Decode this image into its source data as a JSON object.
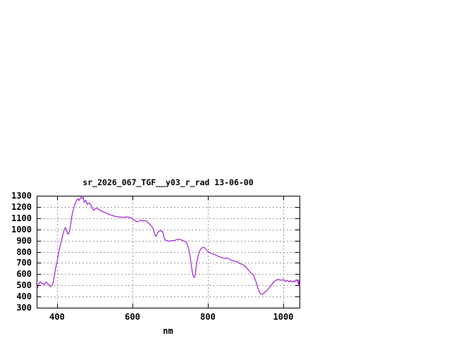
{
  "window": {
    "background": "#ffffff"
  },
  "chart_data": {
    "type": "line",
    "title": "sr_2026_067_TGF__y03_r_rad 13-06-00",
    "xlabel": "nm",
    "ylabel": "",
    "xlim": [
      346,
      1043
    ],
    "ylim": [
      300,
      1300
    ],
    "x_ticks": [
      400,
      600,
      800,
      1000
    ],
    "y_ticks": [
      300,
      400,
      500,
      600,
      700,
      800,
      900,
      1000,
      1100,
      1200,
      1300
    ],
    "grid": true,
    "legend_position": "none",
    "line_color": "#a020d0",
    "grid_color": "#9a9a9a",
    "axis_color": "#000000",
    "series": [
      {
        "name": "sr_2026_067_TGF__y03_r_rad 13-06-00",
        "x": [
          346,
          348,
          350,
          352,
          354,
          356,
          358,
          360,
          362,
          364,
          366,
          368,
          370,
          372,
          374,
          376,
          378,
          380,
          382,
          384,
          386,
          388,
          390,
          392,
          394,
          396,
          398,
          400,
          402,
          404,
          406,
          408,
          410,
          412,
          414,
          416,
          418,
          420,
          422,
          424,
          426,
          428,
          430,
          432,
          434,
          436,
          438,
          440,
          442,
          444,
          446,
          448,
          450,
          452,
          454,
          456,
          458,
          460,
          462,
          464,
          466,
          468,
          470,
          472,
          474,
          476,
          478,
          480,
          483,
          486,
          489,
          492,
          495,
          498,
          501,
          504,
          507,
          510,
          514,
          518,
          522,
          526,
          530,
          535,
          540,
          545,
          550,
          555,
          560,
          565,
          570,
          575,
          580,
          585,
          590,
          595,
          600,
          605,
          610,
          614,
          618,
          622,
          626,
          630,
          634,
          638,
          642,
          646,
          650,
          654,
          657,
          660,
          662,
          665,
          668,
          672,
          676,
          680,
          682,
          685,
          688,
          692,
          696,
          700,
          704,
          708,
          712,
          716,
          720,
          724,
          728,
          732,
          736,
          740,
          744,
          747,
          750,
          753,
          756,
          759,
          762,
          764,
          766,
          768,
          770,
          772,
          774,
          777,
          780,
          783,
          786,
          789,
          792,
          795,
          798,
          801,
          805,
          809,
          813,
          817,
          821,
          825,
          829,
          833,
          837,
          841,
          845,
          849,
          853,
          857,
          861,
          865,
          869,
          873,
          877,
          881,
          885,
          889,
          893,
          897,
          901,
          905,
          909,
          913,
          917,
          920,
          923,
          926,
          929,
          932,
          935,
          938,
          941,
          944,
          947,
          950,
          953,
          956,
          959,
          962,
          965,
          968,
          971,
          974,
          977,
          980,
          983,
          986,
          989,
          992,
          995,
          998,
          1001,
          1004,
          1007,
          1010,
          1013,
          1016,
          1019,
          1022,
          1025,
          1028,
          1031,
          1034,
          1036,
          1038,
          1040,
          1041,
          1043
        ],
        "y": [
          455,
          472,
          498,
          515,
          528,
          530,
          522,
          515,
          518,
          512,
          505,
          512,
          528,
          530,
          520,
          512,
          508,
          500,
          490,
          492,
          498,
          505,
          528,
          565,
          608,
          650,
          680,
          706,
          745,
          782,
          818,
          848,
          875,
          902,
          930,
          958,
          982,
          1005,
          1015,
          1008,
          985,
          963,
          958,
          972,
          995,
          1040,
          1092,
          1128,
          1158,
          1185,
          1208,
          1228,
          1247,
          1260,
          1268,
          1272,
          1257,
          1268,
          1278,
          1288,
          1284,
          1277,
          1284,
          1242,
          1252,
          1258,
          1246,
          1224,
          1230,
          1236,
          1222,
          1202,
          1180,
          1170,
          1184,
          1190,
          1186,
          1178,
          1170,
          1163,
          1158,
          1152,
          1146,
          1139,
          1132,
          1126,
          1120,
          1116,
          1112,
          1111,
          1109,
          1107,
          1109,
          1111,
          1108,
          1103,
          1094,
          1083,
          1071,
          1067,
          1074,
          1081,
          1077,
          1074,
          1079,
          1071,
          1059,
          1046,
          1030,
          1014,
          985,
          945,
          938,
          955,
          977,
          986,
          986,
          980,
          955,
          915,
          903,
          898,
          894,
          896,
          899,
          900,
          902,
          906,
          910,
          912,
          908,
          902,
          897,
          892,
          880,
          850,
          812,
          755,
          685,
          615,
          578,
          570,
          590,
          635,
          690,
          730,
          762,
          795,
          818,
          830,
          838,
          840,
          834,
          822,
          810,
          800,
          792,
          784,
          780,
          777,
          771,
          763,
          756,
          752,
          748,
          743,
          740,
          744,
          741,
          734,
          727,
          721,
          717,
          714,
          710,
          703,
          694,
          689,
          684,
          675,
          662,
          648,
          632,
          614,
          606,
          596,
          575,
          548,
          518,
          485,
          455,
          432,
          422,
          420,
          426,
          435,
          444,
          452,
          463,
          475,
          488,
          500,
          514,
          526,
          536,
          544,
          549,
          552,
          550,
          547,
          545,
          549,
          552,
          540,
          534,
          546,
          538,
          530,
          543,
          534,
          528,
          541,
          532,
          549,
          543,
          550,
          505,
          548,
          498
        ]
      }
    ]
  }
}
